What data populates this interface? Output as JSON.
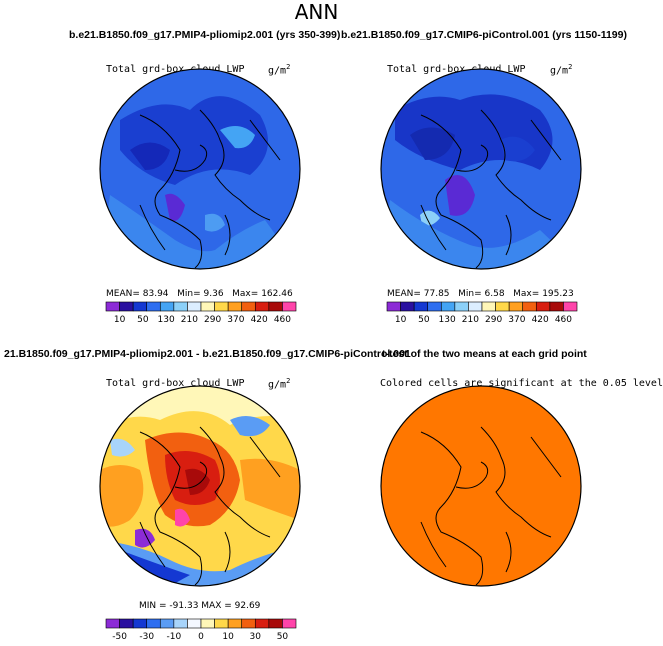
{
  "page_title": "ANN",
  "panels": [
    {
      "header": "b.e21.B1850.f09_g17.PMIP4-pliomip2.001 (yrs 350-399)",
      "variable": "Total grd-box cloud LWP",
      "units": "g/m",
      "units_sup": "2",
      "stats": {
        "mean_label": "MEAN=",
        "mean": "83.94",
        "min_label": "Min=",
        "min": "9.36",
        "max_label": "Max=",
        "max": "162.46"
      },
      "colorbar_ticks": [
        "10",
        "50",
        "130",
        "210",
        "290",
        "370",
        "420",
        "460"
      ]
    },
    {
      "header": "b.e21.B1850.f09_g17.CMIP6-piControl.001 (yrs 1150-1199)",
      "variable": "Total grd-box cloud LWP",
      "units": "g/m",
      "units_sup": "2",
      "stats": {
        "mean_label": "MEAN=",
        "mean": "77.85",
        "min_label": "Min=",
        "min": "6.58",
        "max_label": "Max=",
        "max": "195.23"
      },
      "colorbar_ticks": [
        "10",
        "50",
        "130",
        "210",
        "290",
        "370",
        "420",
        "460"
      ]
    },
    {
      "header": "21.B1850.f09_g17.PMIP4-pliomip2.001 - b.e21.B1850.f09_g17.CMIP6-piControl.001",
      "variable": "Total grd-box cloud LWP",
      "units": "g/m",
      "units_sup": "2",
      "stats_text": "MIN = -91.33 MAX = 92.69",
      "colorbar_ticks": [
        "-50",
        "-30",
        "-10",
        "0",
        "10",
        "30",
        "50"
      ]
    },
    {
      "header": "t-test of the two means at each grid point",
      "variable": "Colored cells are significant at the 0.05 level"
    }
  ],
  "colors": {
    "abs_scale": [
      "#8c2bd6",
      "#2a10a0",
      "#1438d2",
      "#2e6ef0",
      "#44a4f4",
      "#8cd0f8",
      "#dceeff",
      "#fff7b8",
      "#ffd84a",
      "#ffa020",
      "#f26010",
      "#d81e10",
      "#a80a0a",
      "#ff44aa"
    ],
    "diff_scale": [
      "#8c2bd6",
      "#2a10a0",
      "#1438d2",
      "#2e6ef0",
      "#5a9cf4",
      "#a8d4fa",
      "#f4f8ff",
      "#fff7b8",
      "#ffd84a",
      "#ffa020",
      "#f26010",
      "#d81e10",
      "#a80a0a",
      "#ff44aa"
    ],
    "map_ocean_blue": "#2e68e8",
    "ttest_fill": "#ff7700"
  }
}
